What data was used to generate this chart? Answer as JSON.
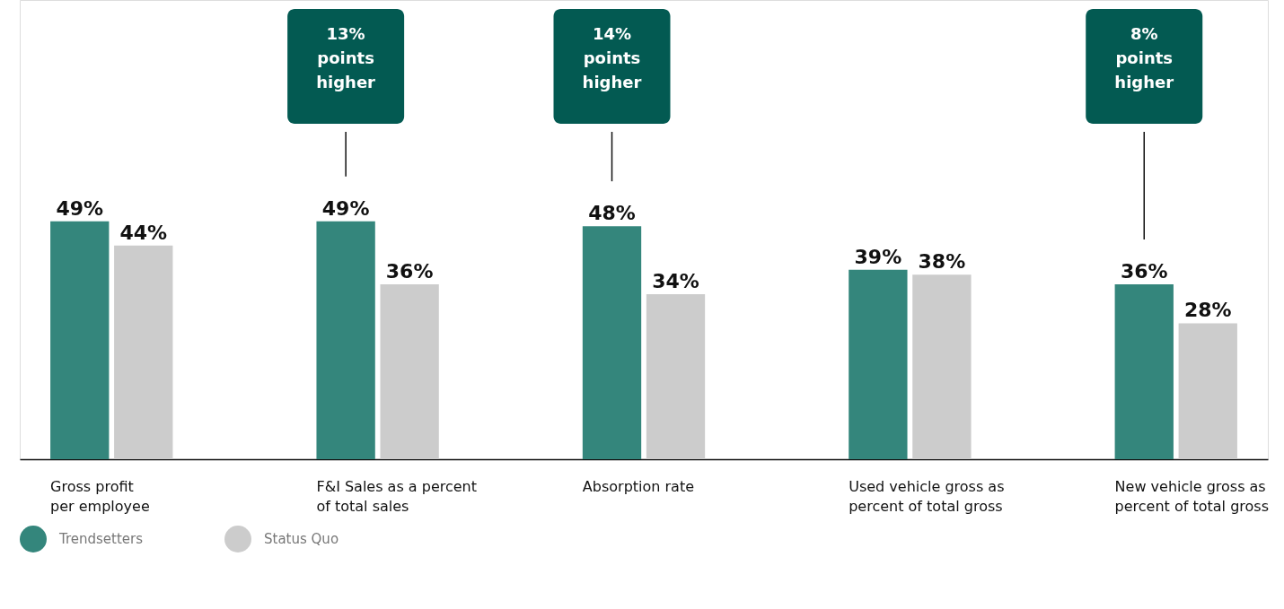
{
  "chart_data": {
    "type": "bar",
    "categories": [
      "Gross profit\nper employee",
      "F&I Sales as a percent\nof total sales",
      "Absorption rate",
      "Used vehicle gross as\npercent of total gross",
      "New vehicle gross as\npercent of total gross"
    ],
    "series": [
      {
        "name": "Trendsetters",
        "color": "#34867c",
        "values": [
          49,
          49,
          48,
          39,
          36
        ],
        "value_labels": [
          "49%",
          "49%",
          "48%",
          "39%",
          "36%"
        ]
      },
      {
        "name": "Status Quo",
        "color": "#cccccc",
        "values": [
          44,
          36,
          34,
          38,
          28
        ],
        "value_labels": [
          "44%",
          "36%",
          "34%",
          "38%",
          "28%"
        ]
      }
    ],
    "annotations": [
      "13%\npoints\nhigher",
      "14%\npoints\nhigher",
      "8%\npoints\nhigher"
    ],
    "legend": "bottom left",
    "grid": false
  }
}
